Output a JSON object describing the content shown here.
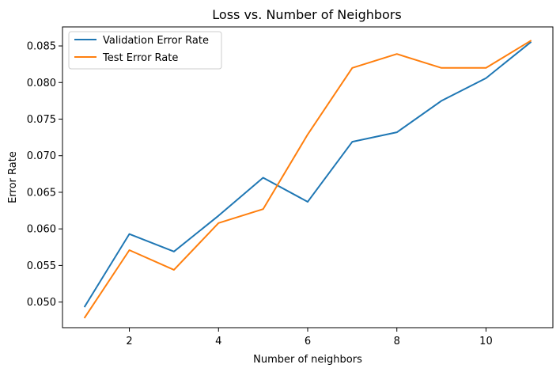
{
  "chart_data": {
    "type": "line",
    "title": "Loss vs. Number of Neighbors",
    "xlabel": "Number of neighbors",
    "ylabel": "Error Rate",
    "x": [
      1,
      2,
      3,
      4,
      5,
      6,
      7,
      8,
      9,
      10,
      11
    ],
    "xlim": [
      0.5,
      11.5
    ],
    "ylim": [
      0.0465,
      0.0876
    ],
    "xticks": [
      2,
      4,
      6,
      8,
      10
    ],
    "yticks": [
      0.05,
      0.055,
      0.06,
      0.065,
      0.07,
      0.075,
      0.08,
      0.085
    ],
    "ytick_labels": [
      "0.050",
      "0.055",
      "0.060",
      "0.065",
      "0.070",
      "0.075",
      "0.080",
      "0.085"
    ],
    "grid": false,
    "legend_position": "top-left",
    "series": [
      {
        "name": "Validation Error Rate",
        "color": "#1f77b4",
        "values": [
          0.0494,
          0.0593,
          0.0569,
          0.0618,
          0.067,
          0.0637,
          0.0719,
          0.0732,
          0.0775,
          0.0806,
          0.0855
        ]
      },
      {
        "name": "Test Error Rate",
        "color": "#ff7f0e",
        "values": [
          0.0479,
          0.0571,
          0.0544,
          0.0608,
          0.0627,
          0.0729,
          0.082,
          0.0839,
          0.082,
          0.082,
          0.0857
        ]
      }
    ]
  }
}
